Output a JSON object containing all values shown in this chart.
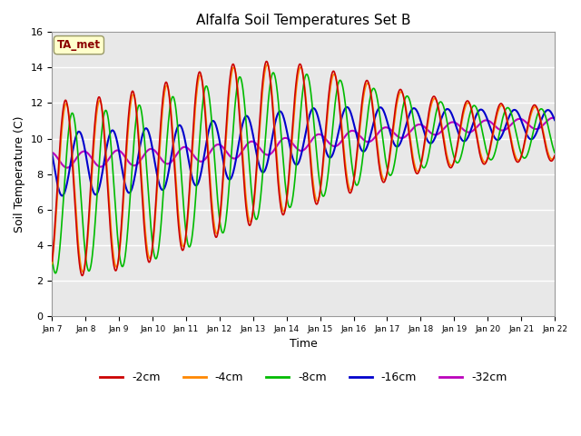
{
  "title": "Alfalfa Soil Temperatures Set B",
  "xlabel": "Time",
  "ylabel": "Soil Temperature (C)",
  "ylim": [
    0,
    16
  ],
  "yticks": [
    0,
    2,
    4,
    6,
    8,
    10,
    12,
    14,
    16
  ],
  "series_colors": {
    "-2cm": "#cc0000",
    "-4cm": "#ff8800",
    "-8cm": "#00bb00",
    "-16cm": "#0000cc",
    "-32cm": "#bb00bb"
  },
  "legend_label_text": "TA_met",
  "axes_facecolor": "#e8e8e8",
  "fig_facecolor": "#ffffff",
  "xtick_labels": [
    "Jan 7",
    "Jan 8",
    "Jan 9",
    "Jan 10",
    "Jan 11",
    "Jan 12",
    "Jan 13",
    "Jan 14",
    "Jan 15",
    "Jan 16",
    "Jan 17",
    "Jan 18",
    "Jan 19",
    "Jan 20",
    "Jan 21",
    "Jan 22"
  ]
}
